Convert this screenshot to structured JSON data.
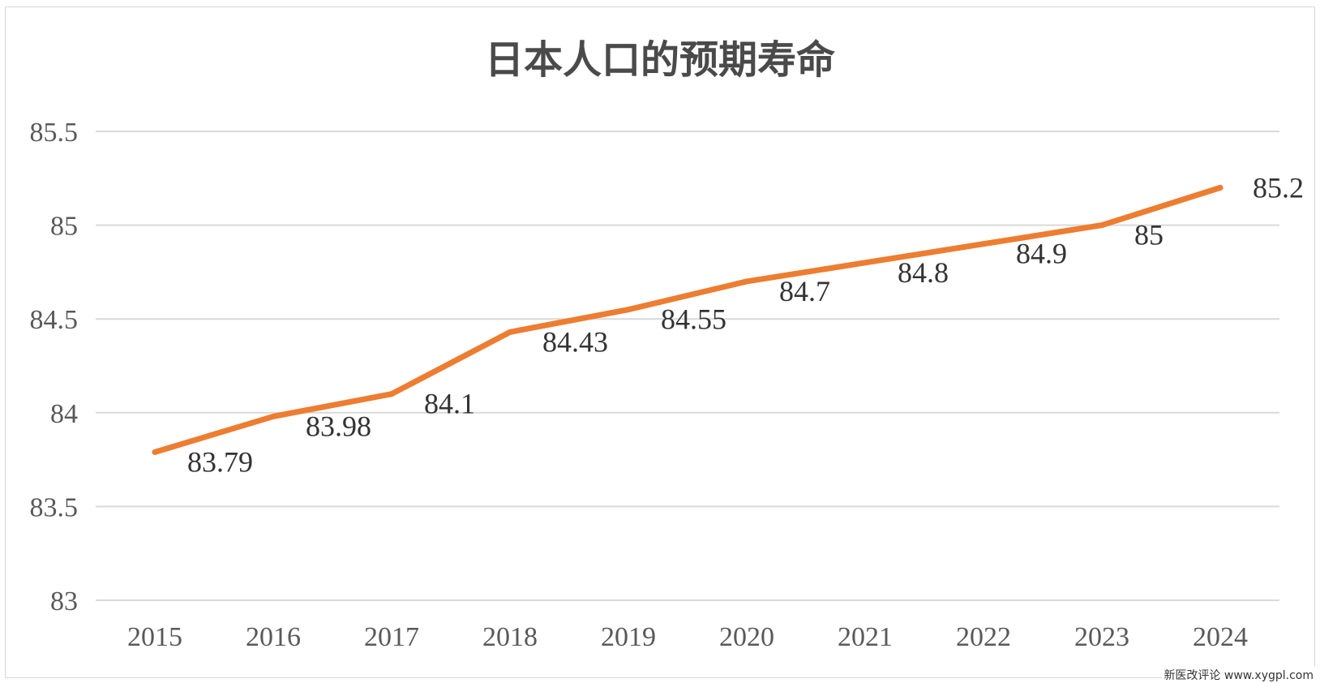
{
  "chart_data": {
    "type": "line",
    "title": "日本人口的预期寿命",
    "xlabel": "",
    "ylabel": "",
    "categories": [
      "2015",
      "2016",
      "2017",
      "2018",
      "2019",
      "2020",
      "2021",
      "2022",
      "2023",
      "2024"
    ],
    "series": [
      {
        "values": [
          83.79,
          83.98,
          84.1,
          84.43,
          84.55,
          84.7,
          84.8,
          84.9,
          85,
          85.2
        ],
        "labels": [
          "83.79",
          "83.98",
          "84.1",
          "84.43",
          "84.55",
          "84.7",
          "84.8",
          "84.9",
          "85",
          "85.2"
        ],
        "color": "#ED7D31"
      }
    ],
    "ylim": [
      83,
      85.5
    ],
    "yticks": [
      "83",
      "83.5",
      "84",
      "84.5",
      "85",
      "85.5"
    ],
    "grid": true,
    "gridline_color": "#d9d9d9",
    "legend": "none"
  },
  "watermark": "新医改评论 www.xygpl.com"
}
